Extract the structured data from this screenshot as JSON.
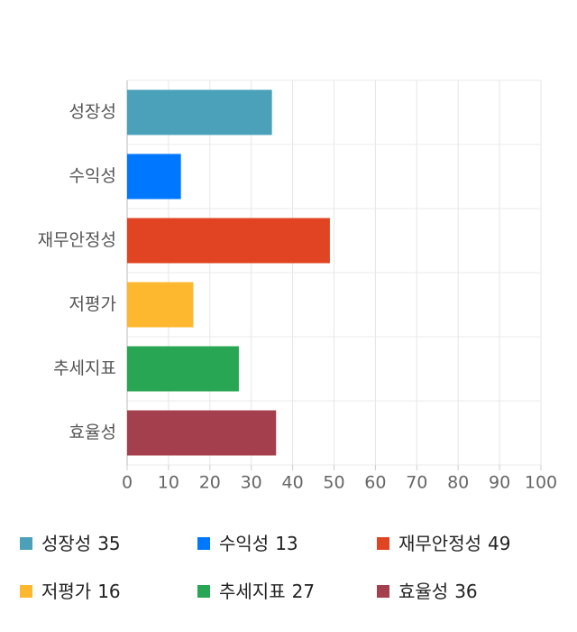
{
  "chart_data": {
    "type": "bar",
    "orientation": "horizontal",
    "categories": [
      "성장성",
      "수익성",
      "재무안정성",
      "저평가",
      "추세지표",
      "효율성"
    ],
    "values": [
      35,
      13,
      49,
      16,
      27,
      36
    ],
    "colors": [
      "#4aa1b9",
      "#0077ff",
      "#e04423",
      "#fdb82f",
      "#29a653",
      "#a4404e"
    ],
    "xlim": [
      0,
      100
    ],
    "xticks": [
      0,
      10,
      20,
      30,
      40,
      50,
      60,
      70,
      80,
      90,
      100
    ],
    "grid": true,
    "legend": "bottom"
  }
}
